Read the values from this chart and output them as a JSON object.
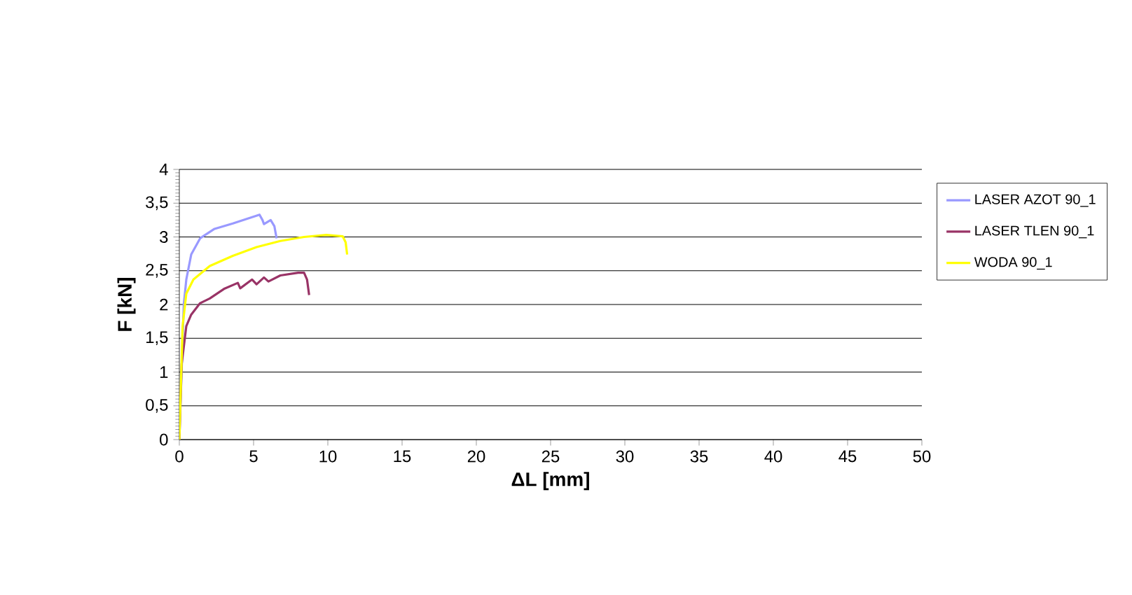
{
  "chart_data": {
    "type": "line",
    "xlabel": "ΔL [mm]",
    "ylabel": "F [kN]",
    "xlim": [
      0,
      50
    ],
    "xticks": [
      0,
      5,
      10,
      15,
      20,
      25,
      30,
      35,
      40,
      45,
      50
    ],
    "ylim": [
      0,
      4
    ],
    "yticks": [
      0,
      {
        "value": 0.5,
        "label": "0,5"
      },
      1,
      {
        "value": 1.5,
        "label": "1,5"
      },
      2,
      {
        "value": 2.5,
        "label": "2,5"
      },
      3,
      {
        "value": 3.5,
        "label": "3,5"
      },
      4
    ],
    "grid": "y",
    "legend": "right",
    "marker": "none",
    "line_style": "solid",
    "series": [
      {
        "name": "LASER AZOT 90_1",
        "color": "#9999ff",
        "x": [
          0,
          0.3,
          0.47,
          0.8,
          1.4,
          2.37,
          3.6,
          5.4,
          5.6,
          5.7,
          6.15,
          6.4,
          6.55
        ],
        "values": [
          0,
          2.0,
          2.37,
          2.74,
          2.98,
          3.12,
          3.2,
          3.33,
          3.25,
          3.19,
          3.25,
          3.16,
          2.98
        ]
      },
      {
        "name": "LASER TLEN 90_1",
        "color": "#993366",
        "x": [
          0,
          0.16,
          0.47,
          0.8,
          1.4,
          2.05,
          3.0,
          3.94,
          4.1,
          4.9,
          5.2,
          5.7,
          6.0,
          6.8,
          8.0,
          8.4,
          8.6,
          8.74
        ],
        "values": [
          0,
          1.12,
          1.68,
          1.85,
          2.02,
          2.09,
          2.23,
          2.32,
          2.24,
          2.37,
          2.3,
          2.4,
          2.34,
          2.43,
          2.47,
          2.47,
          2.37,
          2.14
        ]
      },
      {
        "name": "WODA 90_1",
        "color": "#ffff00",
        "x": [
          0,
          0.22,
          0.47,
          0.95,
          2.05,
          3.6,
          5.2,
          6.8,
          8.4,
          9.9,
          11.0,
          11.2,
          11.3
        ],
        "values": [
          0,
          1.68,
          2.16,
          2.37,
          2.57,
          2.72,
          2.85,
          2.94,
          3.0,
          3.03,
          3.01,
          2.92,
          2.74
        ]
      }
    ]
  }
}
